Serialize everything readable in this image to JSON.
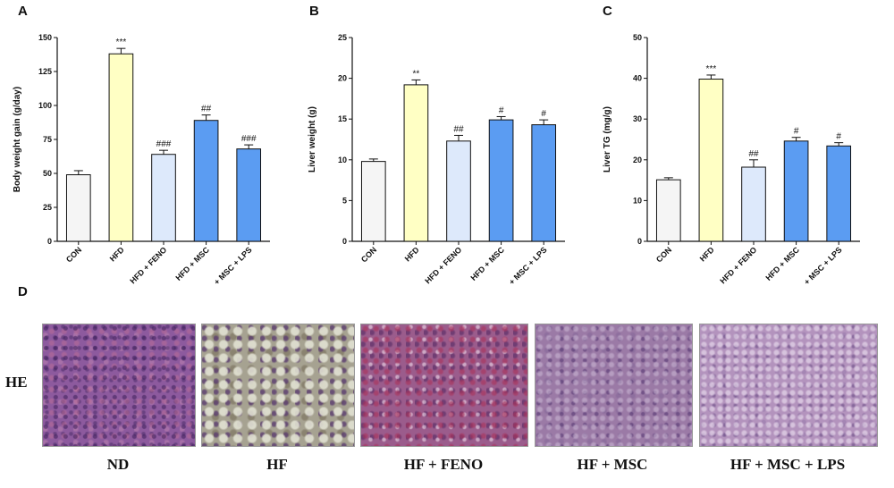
{
  "panel_letters": {
    "a": "A",
    "b": "B",
    "c": "C",
    "d": "D"
  },
  "category_labels": [
    "CON",
    "HFD",
    "HFD + FENO",
    "HFD + MSC",
    "HFD + MSC + LPS"
  ],
  "chart_data": [
    {
      "type": "bar",
      "panel": "A",
      "title": "",
      "xlabel": "",
      "ylabel": "Body weight gain (g/day)",
      "categories": [
        "CON",
        "HFD",
        "HFD + FENO",
        "HFD + MSC",
        "HFD + MSC + LPS"
      ],
      "values": [
        49,
        138,
        64,
        89,
        68
      ],
      "errors": [
        3,
        4,
        3,
        4,
        3
      ],
      "significance": [
        "",
        "***",
        "###",
        "##",
        "###"
      ],
      "ylim": [
        0,
        150
      ],
      "yticks": [
        0,
        25,
        50,
        75,
        100,
        125,
        150
      ],
      "bar_colors": [
        "#f5f5f5",
        "#ffffc4",
        "#dde9fb",
        "#5b9cf2",
        "#5b9cf2"
      ],
      "grid": false
    },
    {
      "type": "bar",
      "panel": "B",
      "title": "",
      "xlabel": "",
      "ylabel": "Liver weight (g)",
      "categories": [
        "CON",
        "HFD",
        "HFD + FENO",
        "HFD + MSC",
        "HFD + MSC + LPS"
      ],
      "values": [
        9.8,
        19.2,
        12.3,
        14.9,
        14.3
      ],
      "errors": [
        0.3,
        0.6,
        0.7,
        0.4,
        0.6
      ],
      "significance": [
        "",
        "**",
        "##",
        "#",
        "#"
      ],
      "ylim": [
        0,
        25
      ],
      "yticks": [
        0,
        5,
        10,
        15,
        20,
        25
      ],
      "bar_colors": [
        "#f5f5f5",
        "#ffffc4",
        "#dde9fb",
        "#5b9cf2",
        "#5b9cf2"
      ],
      "grid": false
    },
    {
      "type": "bar",
      "panel": "C",
      "title": "",
      "xlabel": "",
      "ylabel": "Liver TG (mg/g)",
      "categories": [
        "CON",
        "HFD",
        "HFD + FENO",
        "HFD + MSC",
        "HFD + MSC + LPS"
      ],
      "values": [
        15.1,
        39.8,
        18.2,
        24.6,
        23.4
      ],
      "errors": [
        0.5,
        1.0,
        1.8,
        0.9,
        0.8
      ],
      "significance": [
        "",
        "***",
        "##",
        "#",
        "#"
      ],
      "ylim": [
        0,
        50
      ],
      "yticks": [
        0,
        10,
        20,
        30,
        40,
        50
      ],
      "bar_colors": [
        "#f5f5f5",
        "#ffffc4",
        "#dde9fb",
        "#5b9cf2",
        "#5b9cf2"
      ],
      "grid": false
    }
  ],
  "histology": {
    "row_label": "HE",
    "captions": [
      "ND",
      "HF",
      "HF + FENO",
      "HF + MSC",
      "HF + MSC + LPS"
    ]
  }
}
